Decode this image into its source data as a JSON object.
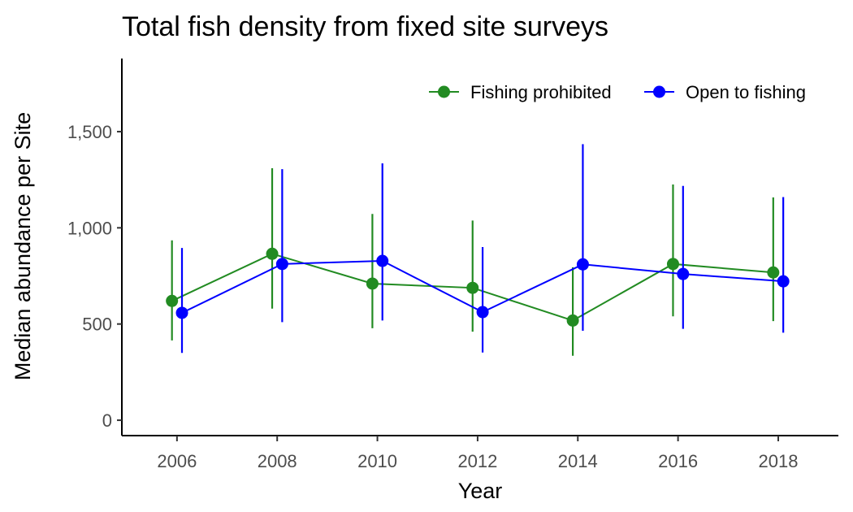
{
  "chart_data": {
    "type": "line",
    "title": "Total fish density from fixed site surveys",
    "xlabel": "Year",
    "ylabel": "Median abundance per Site",
    "x": [
      2006,
      2008,
      2010,
      2012,
      2014,
      2016,
      2018
    ],
    "x_ticks": [
      "2006",
      "2008",
      "2010",
      "2012",
      "2014",
      "2016",
      "2018"
    ],
    "xlim": [
      2004.9,
      2019.2
    ],
    "ylim": [
      -80,
      1880
    ],
    "y_ticks": [
      0,
      500,
      1000,
      1500
    ],
    "y_tick_labels": [
      "0",
      "500",
      "1,000",
      "1,500"
    ],
    "grid": false,
    "legend_position": "top-right",
    "series": [
      {
        "name": "Fishing prohibited",
        "color": "#228B22",
        "values": [
          620,
          865,
          710,
          688,
          518,
          812,
          768
        ],
        "lower": [
          415,
          580,
          478,
          460,
          335,
          540,
          515
        ],
        "upper": [
          935,
          1310,
          1072,
          1038,
          795,
          1225,
          1158
        ]
      },
      {
        "name": "Open to fishing",
        "color": "#0000FF",
        "values": [
          558,
          812,
          828,
          562,
          810,
          760,
          722
        ],
        "lower": [
          350,
          510,
          518,
          352,
          465,
          475,
          455
        ],
        "upper": [
          895,
          1305,
          1335,
          900,
          1435,
          1218,
          1160
        ]
      }
    ]
  }
}
